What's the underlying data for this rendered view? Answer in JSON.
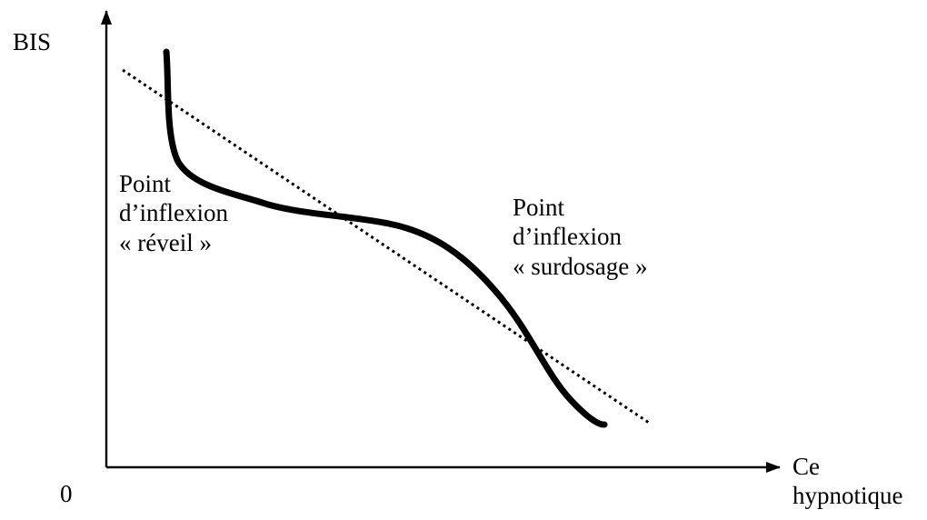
{
  "diagram": {
    "y_axis_label": "BIS",
    "origin_label": "0",
    "x_axis_label": [
      "Ce",
      "hypnotique"
    ],
    "annotation_left": [
      "Point",
      "d’inflexion",
      "« réveil »"
    ],
    "annotation_right": [
      "Point",
      "d’inflexion",
      "« surdosage »"
    ],
    "colors": {
      "background": "#ffffff",
      "ink": "#000000"
    },
    "curves": [
      {
        "name": "sigmoid-curve",
        "style": "solid-thick"
      },
      {
        "name": "linear-fit",
        "style": "dotted"
      }
    ]
  }
}
